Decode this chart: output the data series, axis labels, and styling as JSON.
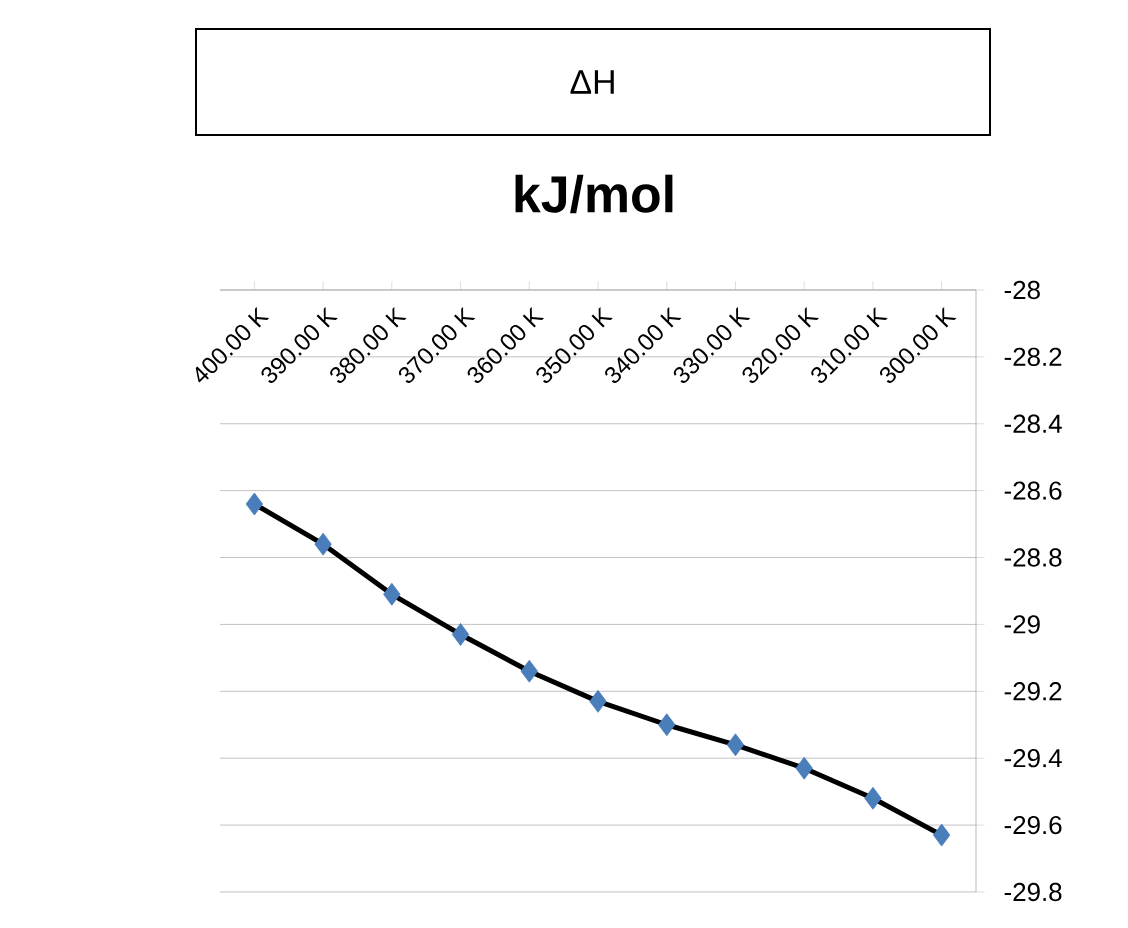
{
  "chart_data": {
    "type": "line",
    "title": "kJ/mol",
    "annotations": [
      "ΔH"
    ],
    "categories": [
      "400.00 K",
      "390.00 K",
      "380.00 K",
      "370.00 K",
      "360.00 K",
      "350.00 K",
      "340.00 K",
      "330.00 K",
      "320.00 K",
      "310.00 K",
      "300.00 K"
    ],
    "series": [
      {
        "color": "#000000",
        "colors": [
          "#4a7ebb",
          "#4a7ebb",
          "#4a7ebb",
          "#4a7ebb",
          "#4a7ebb",
          "#4a7ebb",
          "#4a7ebb",
          "#4a7ebb",
          "#4a7ebb",
          "#4a7ebb",
          "#4a7ebb"
        ],
        "values": [
          -28.64,
          -28.76,
          -28.91,
          -29.03,
          -29.14,
          -29.23,
          -29.3,
          -29.36,
          -29.43,
          -29.52,
          -29.63
        ]
      }
    ],
    "ylim": [
      -29.8,
      -28
    ],
    "yticks": [
      -28,
      -28.2,
      -28.4,
      -28.6,
      -28.8,
      -29,
      -29.2,
      -29.4,
      -29.6,
      -29.8
    ],
    "grid": "y",
    "marker": "diamond",
    "line_style": "solid"
  }
}
